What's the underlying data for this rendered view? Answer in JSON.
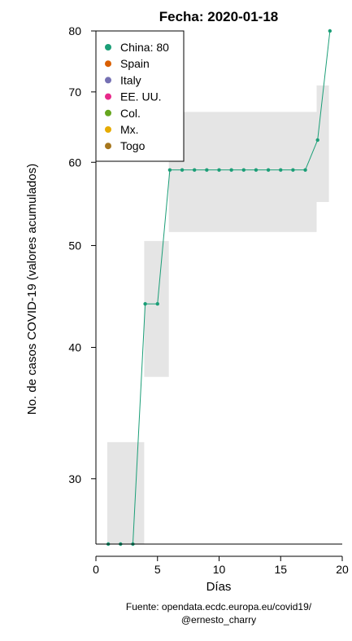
{
  "chart_data": {
    "type": "line",
    "title": "Fecha: 2020-01-18",
    "xlabel": "Días",
    "ylabel": "No. de casos COVID-19 (valores acumulados)",
    "y_scale": "log",
    "xlim": [
      0,
      20
    ],
    "ylim": [
      26,
      80
    ],
    "x_ticks": [
      0,
      5,
      10,
      15,
      20
    ],
    "y_ticks": [
      30,
      40,
      50,
      60,
      70,
      80
    ],
    "grid": false,
    "legend_position": "top-left",
    "series": [
      {
        "name": "China: 80",
        "color": "#1b9e77",
        "x": [
          1,
          2,
          3,
          4,
          5,
          6,
          7,
          8,
          9,
          10,
          11,
          12,
          13,
          14,
          15,
          16,
          17,
          18,
          19
        ],
        "y": [
          26,
          26,
          26,
          44,
          44,
          59,
          59,
          59,
          59,
          59,
          59,
          59,
          59,
          59,
          59,
          59,
          59,
          63,
          80
        ]
      }
    ],
    "band": {
      "color": "#e5e5e5",
      "x": [
        1,
        2,
        3,
        4,
        5,
        6,
        7,
        8,
        9,
        10,
        11,
        12,
        13,
        14,
        15,
        16,
        17,
        18,
        19
      ],
      "lower": [
        26,
        26,
        26,
        37.5,
        37.5,
        51.5,
        51.5,
        51.5,
        51.5,
        51.5,
        51.5,
        51.5,
        51.5,
        51.5,
        51.5,
        51.5,
        51.5,
        55,
        80
      ],
      "upper": [
        32.5,
        32.5,
        32.5,
        50.5,
        50.5,
        67,
        67,
        67,
        67,
        67,
        67,
        67,
        67,
        67,
        67,
        67,
        67,
        71,
        80
      ]
    },
    "legend": [
      {
        "label": "China: 80",
        "color": "#1b9e77"
      },
      {
        "label": "Spain",
        "color": "#d95f02"
      },
      {
        "label": "Italy",
        "color": "#7570b3"
      },
      {
        "label": "EE. UU.",
        "color": "#e7298a"
      },
      {
        "label": "Col.",
        "color": "#66a61e"
      },
      {
        "label": "Mx.",
        "color": "#e6ab02"
      },
      {
        "label": "Togo",
        "color": "#a6761d"
      }
    ]
  },
  "source": {
    "line1": "Fuente: opendata.ecdc.europa.eu/covid19/",
    "line2": "@ernesto_charry"
  }
}
